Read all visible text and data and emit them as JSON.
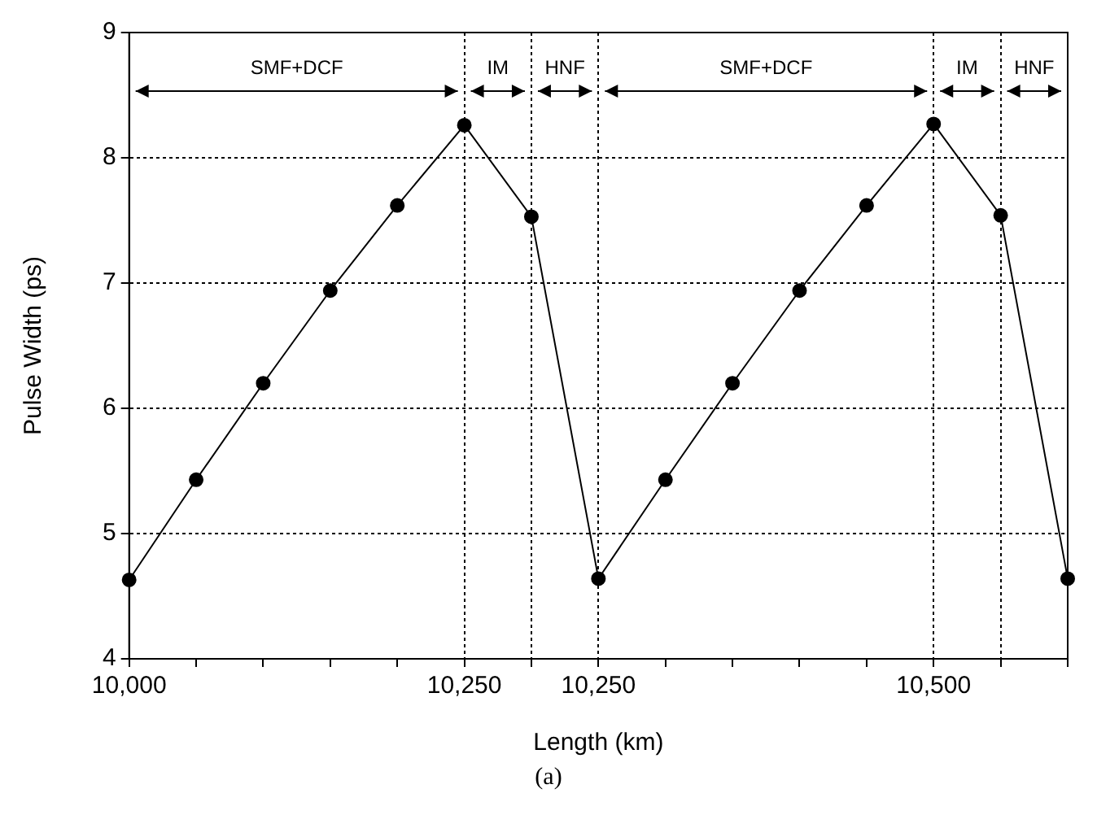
{
  "chart_data": {
    "type": "line",
    "xlabel": "Length (km)",
    "ylabel": "Pulse Width (ps)",
    "categories": [
      "10,000",
      null,
      null,
      null,
      null,
      "10,250",
      null,
      "10,250",
      null,
      null,
      null,
      null,
      "10,500",
      null,
      null
    ],
    "series": [
      {
        "color": "#000000",
        "values": [
          4.63,
          5.43,
          6.2,
          6.94,
          7.62,
          8.26,
          7.53,
          4.64,
          5.43,
          6.2,
          6.94,
          7.62,
          8.27,
          7.54,
          4.64
        ]
      }
    ],
    "ylim": [
      4,
      9
    ],
    "yticks": [
      4,
      5,
      6,
      7,
      8,
      9
    ],
    "grid": true,
    "marker": "circle",
    "line_style": "solid",
    "annotations": [
      "SMF+DCF",
      "IM",
      "HNF",
      "SMF+DCF",
      "IM",
      "HNF",
      "(a)"
    ]
  }
}
